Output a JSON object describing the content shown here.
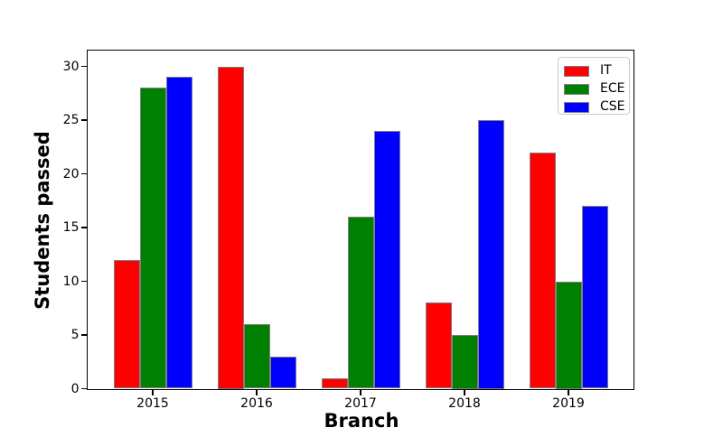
{
  "chart_data": {
    "type": "bar",
    "categories": [
      "2015",
      "2016",
      "2017",
      "2018",
      "2019"
    ],
    "series": [
      {
        "name": "IT",
        "color": "#ff0000",
        "values": [
          12,
          30,
          1,
          8,
          22
        ]
      },
      {
        "name": "ECE",
        "color": "#008000",
        "values": [
          28,
          6,
          16,
          5,
          10
        ]
      },
      {
        "name": "CSE",
        "color": "#0000ff",
        "values": [
          29,
          3,
          24,
          25,
          17
        ]
      }
    ],
    "xlabel": "Branch",
    "ylabel": "Students passed",
    "yticks": [
      0,
      5,
      10,
      15,
      20,
      25,
      30
    ],
    "ylim": [
      0,
      31.5
    ],
    "grid": false,
    "legend_position": "upper right",
    "bar_edge_color": "#808080",
    "legend_border_color": "#cccccc",
    "background_color": "#ffffff"
  }
}
